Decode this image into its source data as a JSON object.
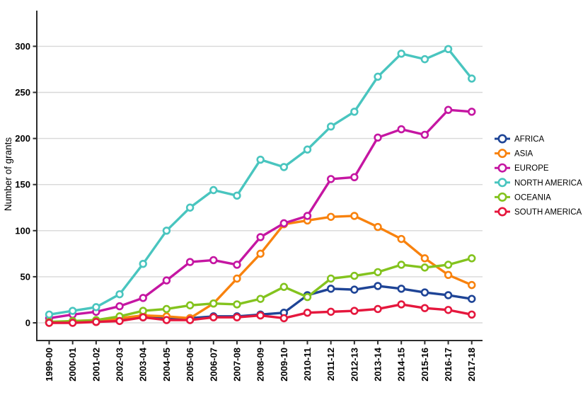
{
  "chart_data": {
    "type": "line",
    "title": "",
    "xlabel": "",
    "ylabel": "Number of grants",
    "ylim": [
      0,
      300
    ],
    "yticks": [
      0,
      50,
      100,
      150,
      200,
      250,
      300
    ],
    "grid": "horizontal-only",
    "legend_position": "right",
    "marker_style": "open-circle",
    "categories": [
      "1999-00",
      "2000-01",
      "2001-02",
      "2002-03",
      "2003-04",
      "2004-05",
      "2005-06",
      "2006-07",
      "2007-08",
      "2008-09",
      "2009-10",
      "2010-11",
      "2011-12",
      "2012-13",
      "2013-14",
      "2014-15",
      "2015-16",
      "2016-17",
      "2017-18"
    ],
    "series": [
      {
        "name": "AFRICA",
        "color": "#1e4496",
        "values": [
          1,
          1,
          2,
          4,
          6,
          5,
          5,
          7,
          7,
          9,
          11,
          30,
          37,
          36,
          40,
          37,
          33,
          30,
          26
        ]
      },
      {
        "name": "ASIA",
        "color": "#f8820e",
        "values": [
          0,
          1,
          1,
          5,
          8,
          7,
          5,
          21,
          48,
          75,
          107,
          111,
          115,
          116,
          104,
          91,
          70,
          52,
          41
        ]
      },
      {
        "name": "EUROPE",
        "color": "#c516a2",
        "values": [
          5,
          9,
          12,
          18,
          27,
          46,
          66,
          68,
          63,
          93,
          108,
          116,
          156,
          158,
          201,
          210,
          204,
          231,
          229
        ]
      },
      {
        "name": "NORTH AMERICA",
        "color": "#49c5bf",
        "values": [
          9,
          13,
          17,
          31,
          64,
          100,
          125,
          144,
          138,
          177,
          169,
          188,
          213,
          229,
          267,
          292,
          286,
          297,
          265
        ]
      },
      {
        "name": "OCEANIA",
        "color": "#83c31e",
        "values": [
          1,
          2,
          3,
          7,
          13,
          15,
          19,
          21,
          20,
          26,
          39,
          28,
          48,
          51,
          55,
          63,
          60,
          63,
          70
        ]
      },
      {
        "name": "SOUTH AMERICA",
        "color": "#e5173d",
        "values": [
          0,
          0,
          1,
          2,
          6,
          3,
          3,
          6,
          6,
          8,
          5,
          11,
          12,
          13,
          15,
          20,
          16,
          14,
          9
        ]
      }
    ],
    "colors": {
      "grid": "#d8d8d8",
      "axis": "#2d2d2d",
      "tick_text": "#000000",
      "marker_fill": "#ffffff"
    }
  }
}
